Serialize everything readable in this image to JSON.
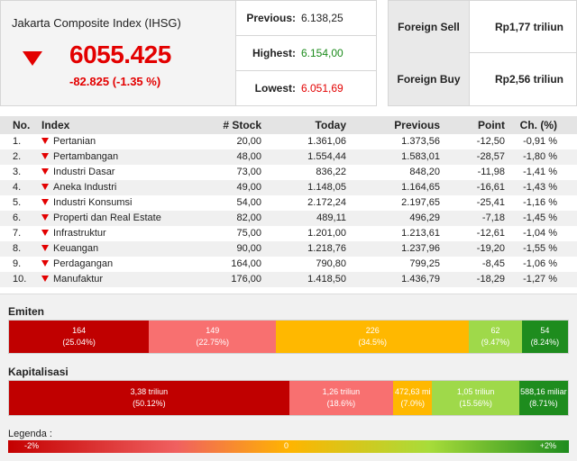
{
  "index": {
    "title": "Jakarta Composite Index (IHSG)",
    "value": "6055.425",
    "change": "-82.825 (-1.35 %)",
    "direction": "down"
  },
  "stats": [
    {
      "label": "Previous:",
      "value": "6.138,25",
      "color": "#222222"
    },
    {
      "label": "Highest:",
      "value": "6.154,00",
      "color": "#1a8a1a"
    },
    {
      "label": "Lowest:",
      "value": "6.051,69",
      "color": "#e30000"
    }
  ],
  "foreign": [
    {
      "label": "Foreign Sell",
      "value": "Rp1,77 triliun"
    },
    {
      "label": "Foreign Buy",
      "value": "Rp2,56 triliun"
    }
  ],
  "table": {
    "headers": [
      "No.",
      "Index",
      "# Stock",
      "Today",
      "Previous",
      "Point",
      "Ch. (%)"
    ],
    "rows": [
      [
        "1.",
        "Pertanian",
        "20,00",
        "1.361,06",
        "1.373,56",
        "-12,50",
        "-0,91 %"
      ],
      [
        "2.",
        "Pertambangan",
        "48,00",
        "1.554,44",
        "1.583,01",
        "-28,57",
        "-1,80 %"
      ],
      [
        "3.",
        "Industri Dasar",
        "73,00",
        "836,22",
        "848,20",
        "-11,98",
        "-1,41 %"
      ],
      [
        "4.",
        "Aneka Industri",
        "49,00",
        "1.148,05",
        "1.164,65",
        "-16,61",
        "-1,43 %"
      ],
      [
        "5.",
        "Industri Konsumsi",
        "54,00",
        "2.172,24",
        "2.197,65",
        "-25,41",
        "-1,16 %"
      ],
      [
        "6.",
        "Properti dan Real Estate",
        "82,00",
        "489,11",
        "496,29",
        "-7,18",
        "-1,45 %"
      ],
      [
        "7.",
        "Infrastruktur",
        "75,00",
        "1.201,00",
        "1.213,61",
        "-12,61",
        "-1,04 %"
      ],
      [
        "8.",
        "Keuangan",
        "90,00",
        "1.218,76",
        "1.237,96",
        "-19,20",
        "-1,55 %"
      ],
      [
        "9.",
        "Perdagangan",
        "164,00",
        "790,80",
        "799,25",
        "-8,45",
        "-1,06 %"
      ],
      [
        "10.",
        "Manufaktur",
        "176,00",
        "1.418,50",
        "1.436,79",
        "-18,29",
        "-1,27 %"
      ]
    ]
  },
  "emiten": {
    "title": "Emiten",
    "segments": [
      {
        "value": "164",
        "pct": "(25.04%)",
        "share": 25.04,
        "color": "#c00000"
      },
      {
        "value": "149",
        "pct": "(22.75%)",
        "share": 22.75,
        "color": "#f87070"
      },
      {
        "value": "226",
        "pct": "(34.5%)",
        "share": 34.5,
        "color": "#ffb800"
      },
      {
        "value": "62",
        "pct": "(9.47%)",
        "share": 9.47,
        "color": "#9fd94a"
      },
      {
        "value": "54",
        "pct": "(8.24%)",
        "share": 8.24,
        "color": "#1e8c1e"
      }
    ]
  },
  "kapitalisasi": {
    "title": "Kapitalisasi",
    "segments": [
      {
        "value": "3,38 triliun",
        "pct": "(50.12%)",
        "share": 50.12,
        "color": "#c00000"
      },
      {
        "value": "1,26 triliun",
        "pct": "(18.6%)",
        "share": 18.6,
        "color": "#f87070"
      },
      {
        "value": "472,63 mi",
        "pct": "(7.0%)",
        "share": 7.0,
        "color": "#ffb800"
      },
      {
        "value": "1,05 triliun",
        "pct": "(15.56%)",
        "share": 15.56,
        "color": "#9fd94a"
      },
      {
        "value": "588,16 miliar",
        "pct": "(8.71%)",
        "share": 8.71,
        "color": "#1e8c1e"
      }
    ]
  },
  "legend": {
    "title": "Legenda :",
    "min": "-2%",
    "mid": "0",
    "max": "+2%"
  }
}
